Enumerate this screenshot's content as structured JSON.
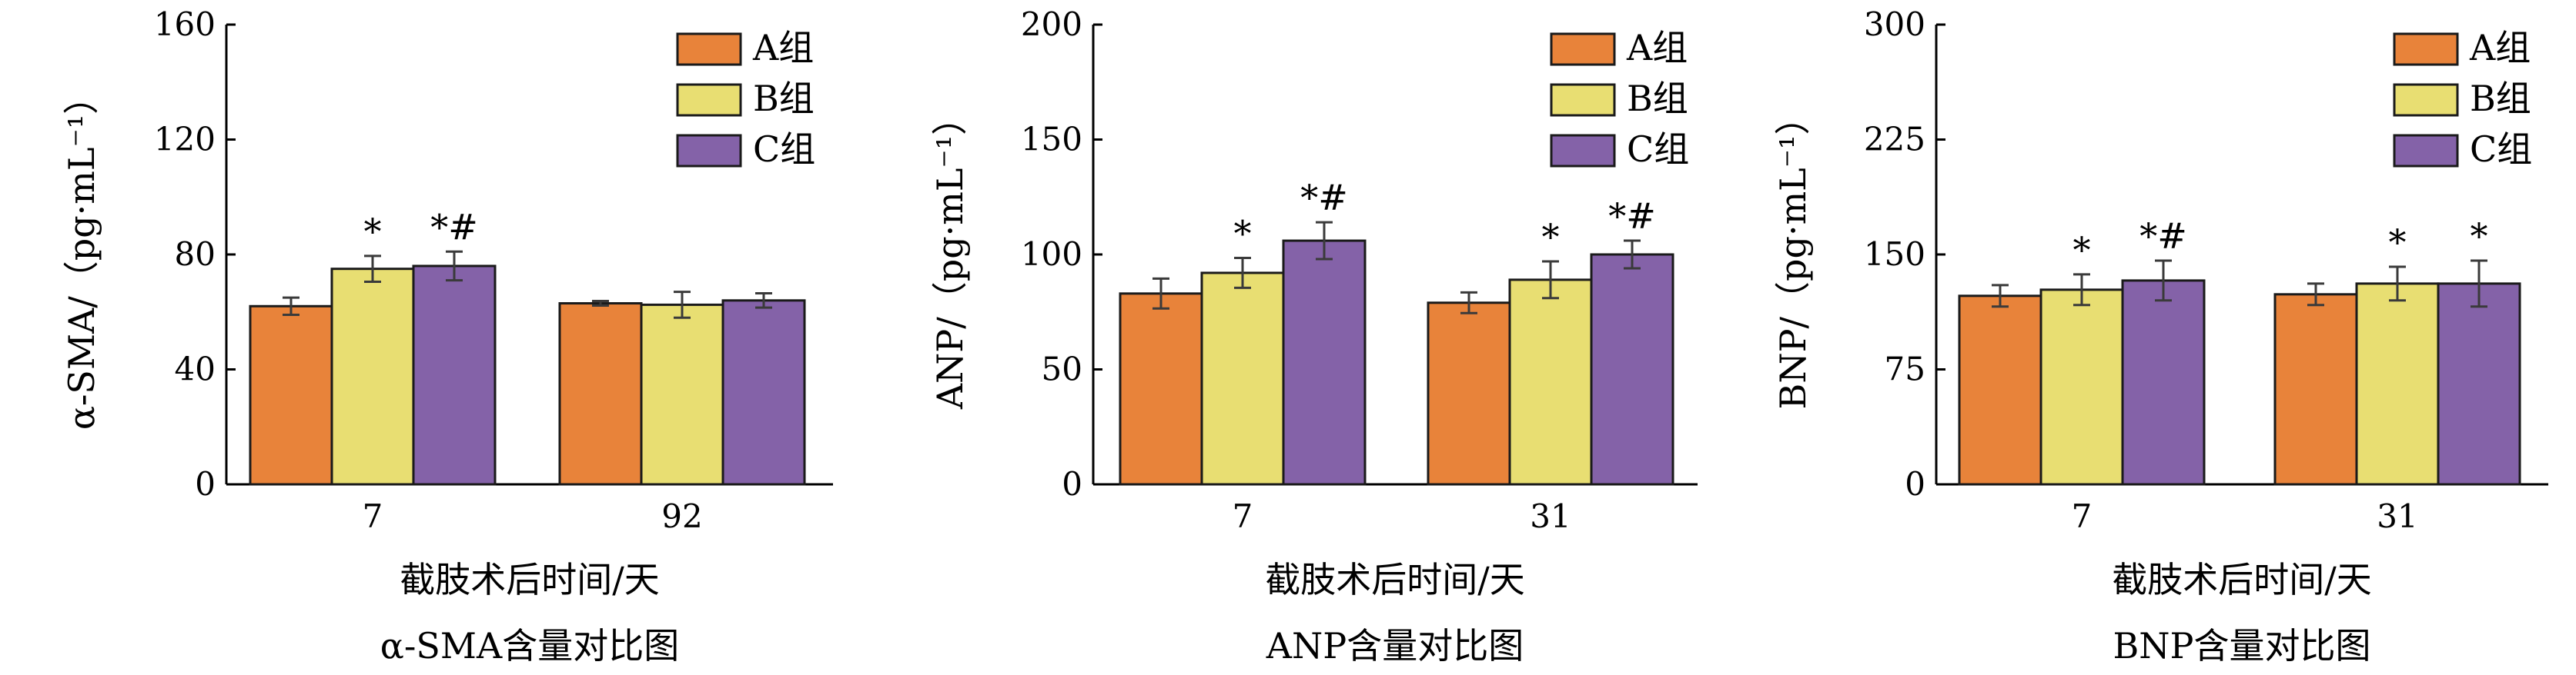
{
  "colors": {
    "A": "#E8833A",
    "B": "#E8DE72",
    "C": "#8462A8",
    "outline": "#1a1a1a",
    "errorbar": "#3a3a3a"
  },
  "chart_data": [
    {
      "type": "bar",
      "title": "α-SMA含量对比图",
      "xlabel": "截肢术后时间/天",
      "ylabel": "α-SMA/（pg·mL⁻¹）",
      "categories": [
        "7",
        "92"
      ],
      "ylim": [
        0,
        160
      ],
      "yticks": [
        "0",
        "40",
        "80",
        "120",
        "160"
      ],
      "legend_position": "top-right",
      "series": [
        {
          "name": "A组",
          "color_key": "A",
          "values": [
            62,
            63
          ],
          "errors": [
            3,
            0.8
          ],
          "marks": [
            "",
            ""
          ]
        },
        {
          "name": "B组",
          "color_key": "B",
          "values": [
            75,
            62.5
          ],
          "errors": [
            4.5,
            4.5
          ],
          "marks": [
            "*",
            ""
          ]
        },
        {
          "name": "C组",
          "color_key": "C",
          "values": [
            76,
            64
          ],
          "errors": [
            5,
            2.5
          ],
          "marks": [
            "*#",
            ""
          ]
        }
      ]
    },
    {
      "type": "bar",
      "title": "ANP含量对比图",
      "xlabel": "截肢术后时间/天",
      "ylabel": "ANP/（pg·mL⁻¹）",
      "categories": [
        "7",
        "31"
      ],
      "ylim": [
        0,
        200
      ],
      "yticks": [
        "0",
        "50",
        "100",
        "150",
        "200"
      ],
      "legend_position": "top-right",
      "series": [
        {
          "name": "A组",
          "color_key": "A",
          "values": [
            83,
            79
          ],
          "errors": [
            6.5,
            4.5
          ],
          "marks": [
            "",
            ""
          ]
        },
        {
          "name": "B组",
          "color_key": "B",
          "values": [
            92,
            89
          ],
          "errors": [
            6.5,
            8
          ],
          "marks": [
            "*",
            "*"
          ]
        },
        {
          "name": "C组",
          "color_key": "C",
          "values": [
            106,
            100
          ],
          "errors": [
            8,
            6
          ],
          "marks": [
            "*#",
            "*#"
          ]
        }
      ]
    },
    {
      "type": "bar",
      "title": "BNP含量对比图",
      "xlabel": "截肢术后时间/天",
      "ylabel": "BNP/（pg·mL⁻¹）",
      "categories": [
        "7",
        "31"
      ],
      "ylim": [
        0,
        300
      ],
      "yticks": [
        "0",
        "75",
        "150",
        "225",
        "300"
      ],
      "legend_position": "top-right",
      "series": [
        {
          "name": "A组",
          "color_key": "A",
          "values": [
            123,
            124
          ],
          "errors": [
            7,
            7
          ],
          "marks": [
            "",
            ""
          ]
        },
        {
          "name": "B组",
          "color_key": "B",
          "values": [
            127,
            131
          ],
          "errors": [
            10,
            11
          ],
          "marks": [
            "*",
            "*"
          ]
        },
        {
          "name": "C组",
          "color_key": "C",
          "values": [
            133,
            131
          ],
          "errors": [
            13,
            15
          ],
          "marks": [
            "*#",
            "*"
          ]
        }
      ]
    }
  ]
}
